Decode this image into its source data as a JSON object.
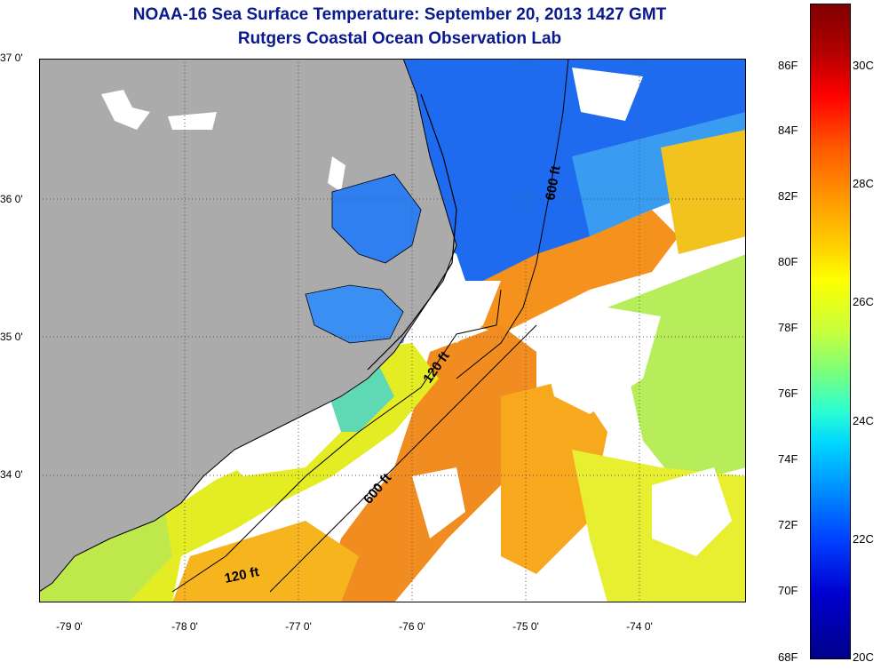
{
  "header": {
    "title": "NOAA-16 Sea Surface Temperature:  September 20, 2013 1427 GMT",
    "subtitle": "Rutgers Coastal Ocean Observation Lab"
  },
  "map": {
    "latitude_labels": [
      "37 0'",
      "36 0'",
      "35 0'",
      "34 0'"
    ],
    "longitude_labels": [
      "-79 0'",
      "-78 0'",
      "-77 0'",
      "-76 0'",
      "-75 0'",
      "-74 0'"
    ],
    "depth_contours": [
      "120 ft",
      "600 ft"
    ],
    "contour_labels": [
      {
        "text": "600 ft"
      },
      {
        "text": "120 ft"
      },
      {
        "text": "600 ft"
      },
      {
        "text": "120 ft"
      }
    ]
  },
  "colorbar": {
    "fahrenheit_labels": [
      "86F",
      "84F",
      "82F",
      "80F",
      "78F",
      "76F",
      "74F",
      "72F",
      "70F",
      "68F"
    ],
    "celsius_labels": [
      "30C",
      "28C",
      "26C",
      "24C",
      "22C",
      "20C"
    ],
    "colors": {
      "max": "#800000",
      "warm": "#ff8c00",
      "mid": "#ffff00",
      "cool": "#00d8ff",
      "min": "#00008a"
    }
  },
  "colors": {
    "land": "#ababab",
    "cloud_mask": "#ffffff",
    "title": "#0a1a8c",
    "coastline": "#000000"
  }
}
